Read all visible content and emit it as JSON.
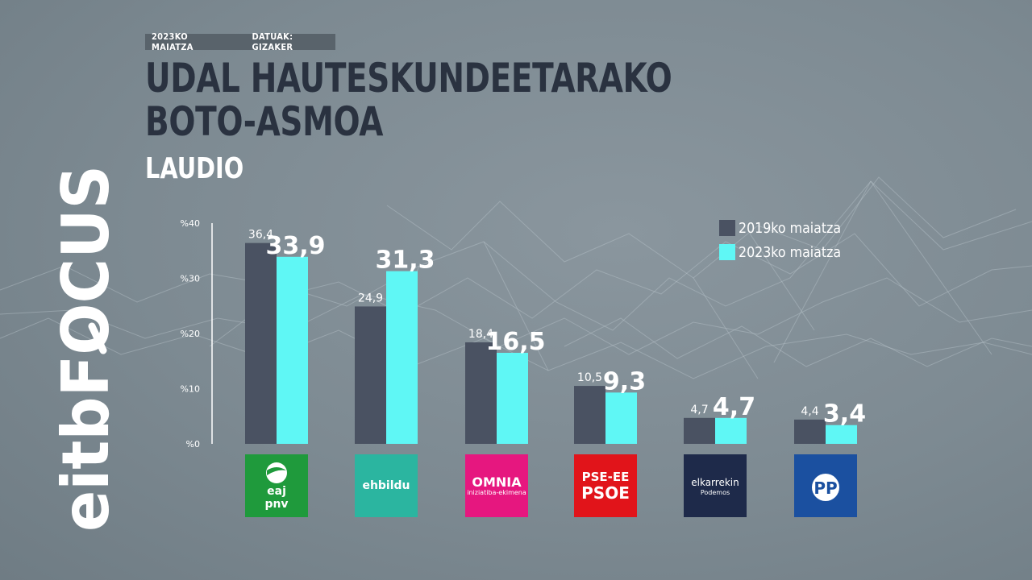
{
  "header": {
    "date_tag": "2023KO MAIATZA",
    "source_tag": "DATUAK: GIZAKER",
    "title_line1": "UDAL HAUTESKUNDEETARAKO",
    "title_line2": "BOTO-ASMOA",
    "location": "LAUDIO"
  },
  "brand": {
    "name": "eitbFOCUS",
    "icon": "magnifier-icon"
  },
  "colors": {
    "series_2019": "#4a5262",
    "series_2023": "#5ff7f5",
    "axis": "#ffffff",
    "title": "#2a3240"
  },
  "legend": {
    "items": [
      {
        "label": "2019ko maiatza",
        "color": "#4a5262"
      },
      {
        "label": "2023ko maiatza",
        "color": "#5ff7f5"
      }
    ]
  },
  "parties": [
    {
      "id": "eaj-pnv",
      "logo_line1": "eaj",
      "logo_line2": "pnv",
      "bg": "#1f9a3c"
    },
    {
      "id": "ehbildu",
      "logo_line1": "ehbildu",
      "logo_line2": "",
      "bg": "#2bb5a0"
    },
    {
      "id": "omnia",
      "logo_line1": "OMNIA",
      "logo_line2": "iniziatiba-ekimena",
      "bg": "#e6177f"
    },
    {
      "id": "pse-ee",
      "logo_line1": "PSE-EE",
      "logo_line2": "PSOE",
      "bg": "#e1141a"
    },
    {
      "id": "elkarrekin",
      "logo_line1": "elkarrekin",
      "logo_line2": "Podemos",
      "bg": "#1e2a4a"
    },
    {
      "id": "pp",
      "logo_line1": "PP",
      "logo_line2": "",
      "bg": "#1b50a0"
    }
  ],
  "chart_data": {
    "type": "bar",
    "categories": [
      "EAJ-PNV",
      "EH Bildu",
      "Omnia",
      "PSE-EE (PSOE)",
      "Elkarrekin Podemos",
      "PP"
    ],
    "series": [
      {
        "name": "2019ko maiatza",
        "values": [
          36.4,
          24.9,
          18.4,
          10.5,
          4.7,
          4.4
        ],
        "labels": [
          "36,4",
          "24,9",
          "18,4",
          "10,5",
          "4,7",
          "4,4"
        ]
      },
      {
        "name": "2023ko maiatza",
        "values": [
          33.9,
          31.3,
          16.5,
          9.3,
          4.7,
          3.4
        ],
        "labels": [
          "33,9",
          "31,3",
          "16,5",
          "9,3",
          "4,7",
          "3,4"
        ]
      }
    ],
    "y_ticks": [
      0,
      10,
      20,
      30,
      40
    ],
    "y_tick_labels": [
      "%0",
      "%10",
      "%20",
      "%30",
      "%40"
    ],
    "ylim": [
      0,
      40
    ],
    "grid": false,
    "legend_position": "top-right",
    "title": "UDAL HAUTESKUNDEETARAKO BOTO-ASMOA",
    "subtitle": "LAUDIO"
  }
}
